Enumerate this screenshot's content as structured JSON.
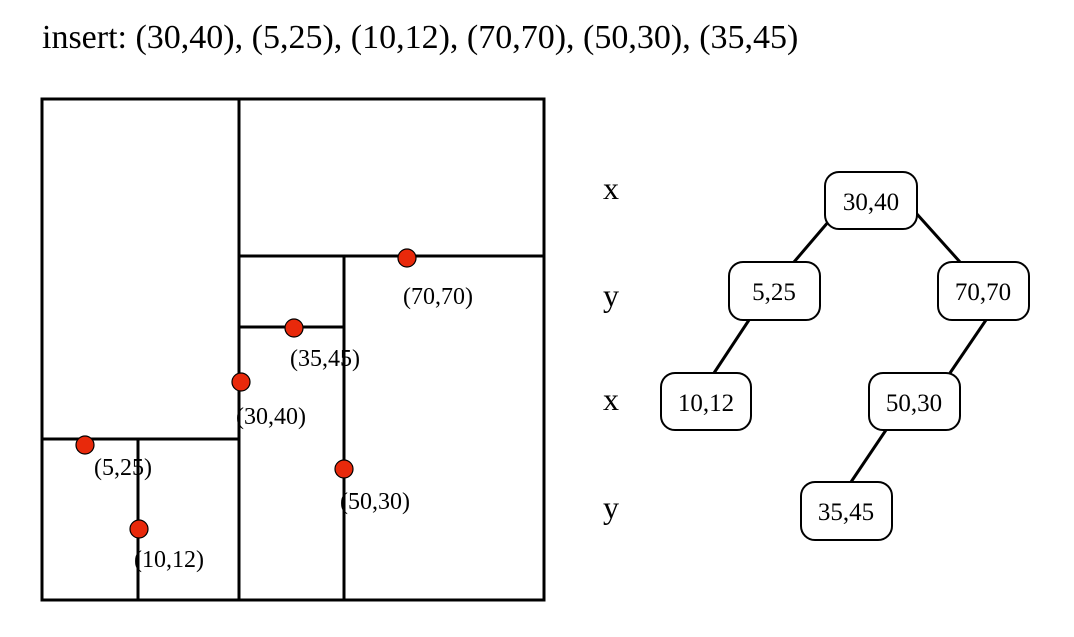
{
  "title": "insert: (30,40), (5,25), (10,12), (70,70), (50,30), (35,45)",
  "colors": {
    "point": "#e8290b",
    "line": "#000000",
    "background": "#ffffff"
  },
  "partition": {
    "points": [
      {
        "label": "(30,40)"
      },
      {
        "label": "(5,25)"
      },
      {
        "label": "(10,12)"
      },
      {
        "label": "(70,70)"
      },
      {
        "label": "(50,30)"
      },
      {
        "label": "(35,45)"
      }
    ]
  },
  "tree": {
    "levels": [
      "x",
      "y",
      "x",
      "y"
    ],
    "nodes": [
      {
        "label": "30,40"
      },
      {
        "label": "5,25"
      },
      {
        "label": "70,70"
      },
      {
        "label": "10,12"
      },
      {
        "label": "50,30"
      },
      {
        "label": "35,45"
      }
    ]
  }
}
